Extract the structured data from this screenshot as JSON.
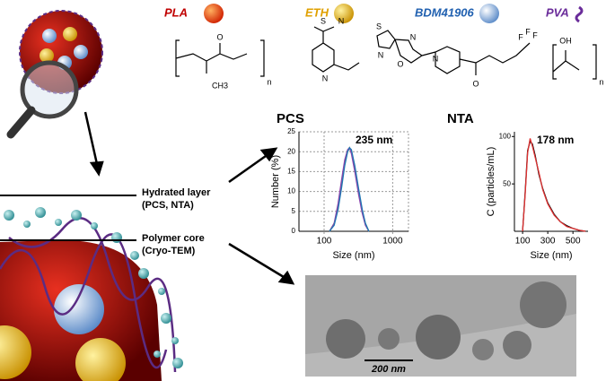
{
  "labels": {
    "pla": "PLA",
    "eth": "ETH",
    "bdm": "BDM41906",
    "pva": "PVA",
    "hydrated": "Hydrated layer",
    "hydrated_methods": "(PCS, NTA)",
    "core": "Polymer core",
    "core_methods": "(Cryo-TEM)",
    "scale_bar": "200 nm"
  },
  "structures": [
    "O",
    "CH3",
    "n",
    "S",
    "N",
    "N",
    "S",
    "N",
    "O",
    "N",
    "N",
    "O",
    "F",
    "F",
    "F",
    "OH",
    "n"
  ],
  "chart_data": [
    {
      "type": "line",
      "title": "PCS",
      "annotation": "235 nm",
      "x_label": "Size (nm)",
      "y_label": "Number (%)",
      "x_log": true,
      "grid": true,
      "xlim": [
        43,
        1700
      ],
      "ylim": [
        0,
        25
      ],
      "xticks": [
        100,
        1000
      ],
      "yticks": [
        0,
        5,
        10,
        15,
        20,
        25
      ],
      "x": [
        120,
        140,
        160,
        180,
        200,
        220,
        235,
        250,
        280,
        320,
        360,
        400,
        450
      ],
      "series": [
        {
          "color": "#2ca02c",
          "values": [
            0,
            2,
            6,
            12,
            17,
            20,
            21,
            20,
            16,
            10,
            5,
            2,
            0
          ]
        },
        {
          "color": "#8e44ad",
          "values": [
            0,
            2,
            7,
            13,
            18,
            20.5,
            21,
            19.5,
            15,
            9,
            4.5,
            1.5,
            0
          ]
        },
        {
          "color": "#1f77b4",
          "values": [
            0,
            1.5,
            5.5,
            11,
            16.5,
            20,
            21,
            20.5,
            16.5,
            10.5,
            5.5,
            2,
            0
          ]
        }
      ]
    },
    {
      "type": "line",
      "title": "NTA",
      "annotation": "178 nm",
      "x_label": "Size (nm)",
      "y_label": "C (particles/mL)",
      "x_log": false,
      "grid": false,
      "xlim": [
        35,
        620
      ],
      "ylim": [
        0,
        105
      ],
      "xticks": [
        100,
        300,
        500
      ],
      "yticks": [
        50,
        100
      ],
      "x": [
        100,
        120,
        140,
        160,
        178,
        200,
        230,
        260,
        300,
        350,
        400,
        450,
        500,
        550,
        600
      ],
      "series": [
        {
          "color": "#000000",
          "values": [
            0,
            40,
            85,
            95,
            92,
            80,
            60,
            45,
            30,
            18,
            10,
            6,
            3,
            1,
            0
          ]
        },
        {
          "color": "#e03030",
          "values": [
            0,
            38,
            83,
            98,
            90,
            78,
            62,
            44,
            29,
            17,
            10,
            5,
            3,
            1,
            0
          ]
        }
      ]
    }
  ]
}
